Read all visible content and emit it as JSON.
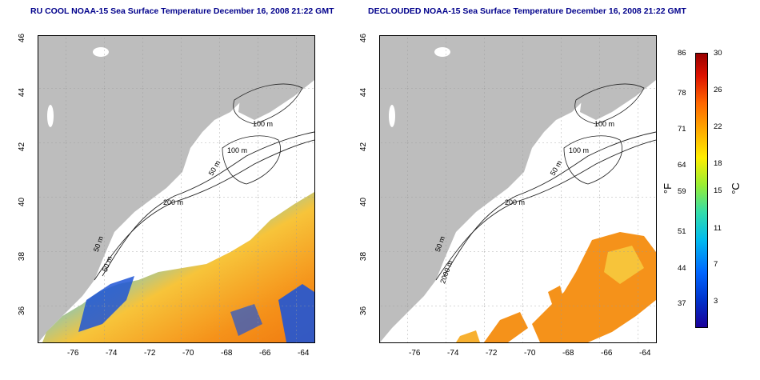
{
  "panels": [
    {
      "title": "RU COOL NOAA-15 Sea Surface Temperature December 16, 2008 21:22 GMT",
      "contours": [
        "100 m",
        "100 m",
        "50 m",
        "200 m",
        "50 m",
        "50 m"
      ]
    },
    {
      "title": "DECLOUDED NOAA-15 Sea Surface Temperature December 16, 2008 21:22 GMT",
      "contours": [
        "100 m",
        "100 m",
        "50 m",
        "200 m",
        "50 m",
        "2000 m"
      ]
    }
  ],
  "axes": {
    "lat_ticks": [
      "46",
      "44",
      "42",
      "40",
      "38",
      "36"
    ],
    "lon_ticks": [
      "-76",
      "-74",
      "-72",
      "-70",
      "-68",
      "-66",
      "-64"
    ]
  },
  "colorbar": {
    "fahrenheit_ticks": [
      "86",
      "78",
      "71",
      "64",
      "59",
      "51",
      "44",
      "37"
    ],
    "celsius_ticks": [
      "30",
      "26",
      "22",
      "18",
      "15",
      "11",
      "7",
      "3"
    ],
    "fahrenheit_unit": "°F",
    "celsius_unit": "°C"
  },
  "colors": {
    "land": "#bdbdbd",
    "title": "#00008b",
    "warm": "#f59a1c",
    "cold": "#1f55d6"
  }
}
